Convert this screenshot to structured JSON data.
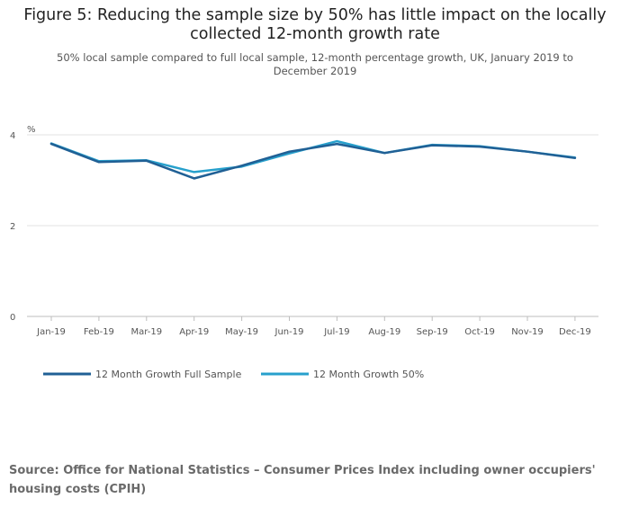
{
  "header": {
    "title": "Figure 5: Reducing the sample size by 50% has little impact on the locally collected 12-month growth rate",
    "subtitle": "50% local sample compared to full local sample, 12-month percentage growth, UK, January 2019 to December 2019"
  },
  "chart_data": {
    "type": "line",
    "title": "Figure 5: Reducing the sample size by 50% has little impact on the locally collected 12-month growth rate",
    "subtitle": "50% local sample compared to full local sample, 12-month percentage growth, UK, January 2019 to December 2019",
    "xlabel": "",
    "ylabel": "%",
    "ylim": [
      0,
      4
    ],
    "yticks": [
      "0",
      "2",
      "4"
    ],
    "grid": true,
    "legend_position": "bottom-left",
    "categories": [
      "Jan-19",
      "Feb-19",
      "Mar-19",
      "Apr-19",
      "May-19",
      "Jun-19",
      "Jul-19",
      "Aug-19",
      "Sep-19",
      "Oct-19",
      "Nov-19",
      "Dec-19"
    ],
    "series": [
      {
        "name": "12 Month Growth Full Sample",
        "color": "#206095",
        "values": [
          3.8,
          3.4,
          3.43,
          3.04,
          3.32,
          3.63,
          3.8,
          3.6,
          3.77,
          3.74,
          3.63,
          3.49
        ]
      },
      {
        "name": "12 Month Growth 50%",
        "color": "#27A0CC",
        "values": [
          3.81,
          3.42,
          3.44,
          3.18,
          3.3,
          3.59,
          3.86,
          3.6,
          3.78,
          3.75,
          3.63,
          3.5
        ]
      }
    ]
  },
  "footer": {
    "source": "Source: Office for National Statistics – Consumer Prices Index including owner occupiers' housing costs (CPIH)"
  }
}
